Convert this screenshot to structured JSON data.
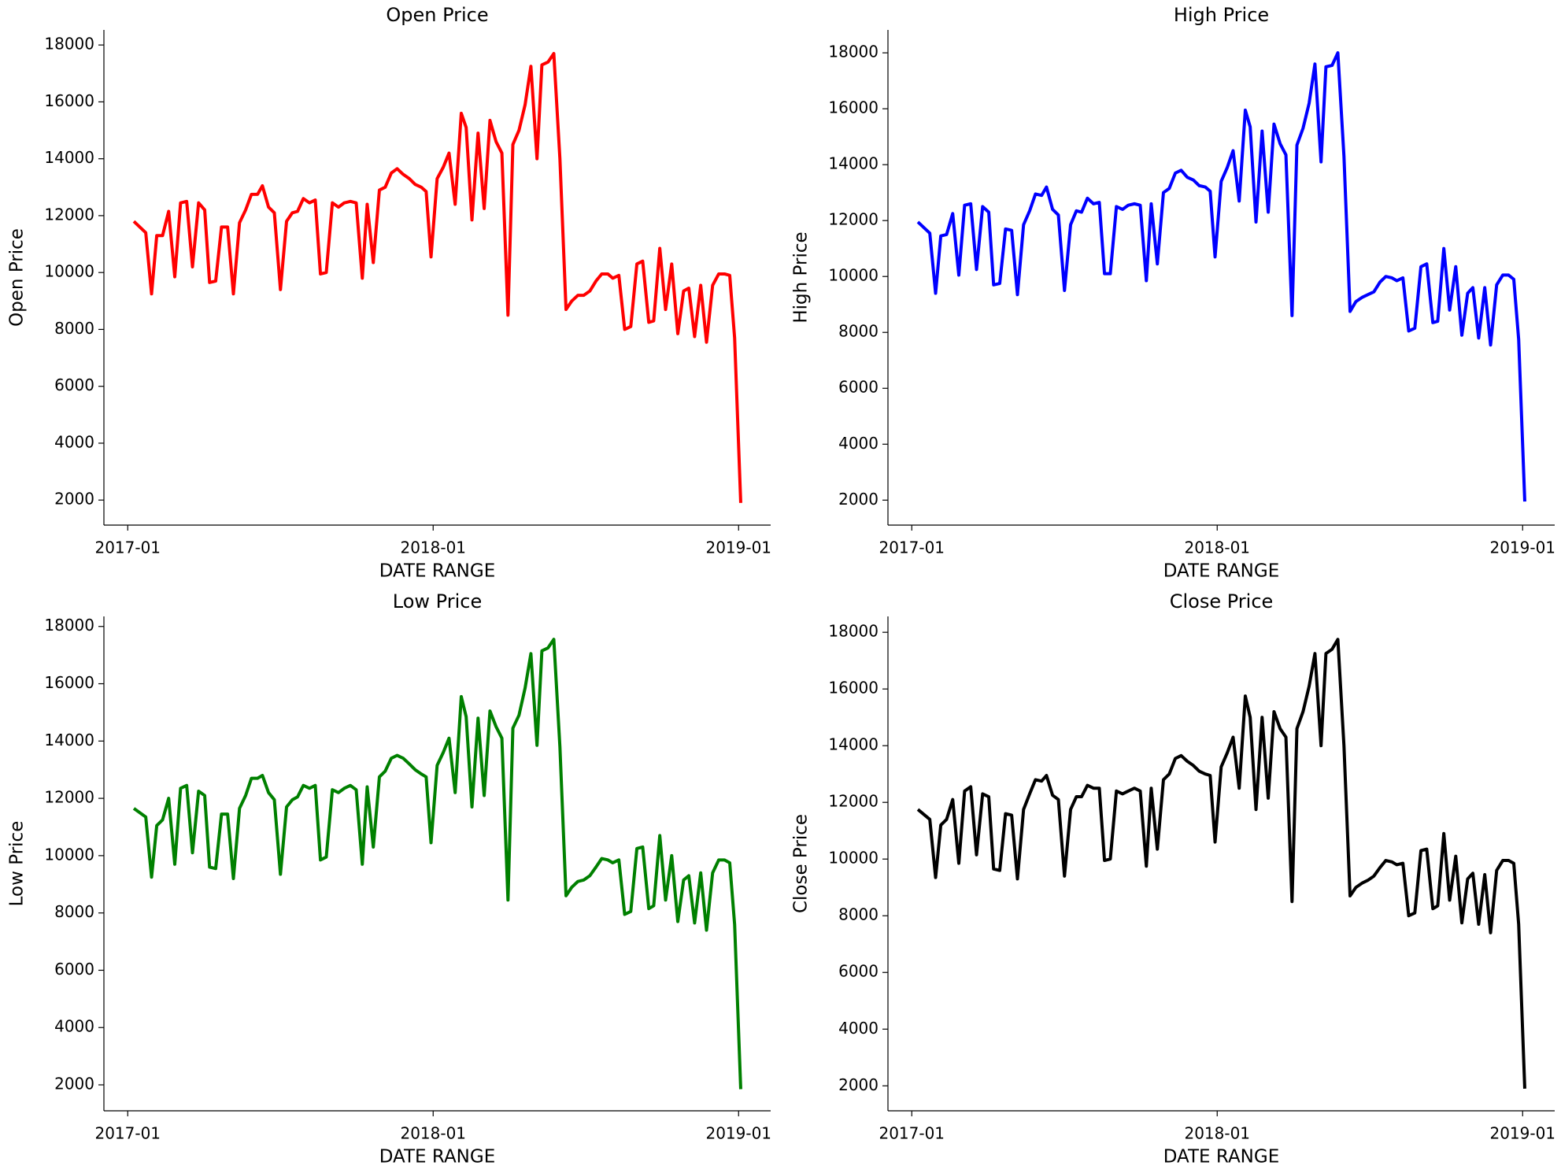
{
  "chart_data": [
    {
      "type": "line",
      "title": "Open Price",
      "xlabel": "DATE RANGE",
      "ylabel": "Open Price",
      "color": "#ff0000",
      "x": [
        2017.02,
        2017.059,
        2017.078,
        2017.095,
        2017.114,
        2017.134,
        2017.154,
        2017.173,
        2017.193,
        2017.212,
        2017.232,
        2017.252,
        2017.268,
        2017.288,
        2017.307,
        2017.327,
        2017.346,
        2017.366,
        2017.386,
        2017.405,
        2017.425,
        2017.441,
        2017.461,
        2017.48,
        2017.5,
        2017.52,
        2017.539,
        2017.556,
        2017.575,
        2017.595,
        2017.614,
        2017.631,
        2017.65,
        2017.67,
        2017.69,
        2017.709,
        2017.729,
        2017.748,
        2017.768,
        2017.784,
        2017.804,
        2017.824,
        2017.843,
        2017.863,
        2017.882,
        2017.902,
        2017.922,
        2017.941,
        2017.961,
        2017.977,
        2017.993,
        2018.013,
        2018.033,
        2018.052,
        2018.072,
        2018.092,
        2018.108,
        2018.127,
        2018.147,
        2018.167,
        2018.186,
        2018.206,
        2018.225,
        2018.245,
        2018.261,
        2018.281,
        2018.301,
        2018.32,
        2018.34,
        2018.356,
        2018.376,
        2018.395,
        2018.415,
        2018.435,
        2018.454,
        2018.474,
        2018.493,
        2018.513,
        2018.533,
        2018.552,
        2018.572,
        2018.588,
        2018.608,
        2018.627,
        2018.647,
        2018.667,
        2018.686,
        2018.706,
        2018.722,
        2018.742,
        2018.761,
        2018.781,
        2018.801,
        2018.82,
        2018.837,
        2018.856,
        2018.876,
        2018.895,
        2018.915,
        2018.935,
        2018.954,
        2018.971,
        2018.987,
        2019.007
      ],
      "values": [
        11800,
        11400,
        9250,
        11300,
        11300,
        12150,
        9850,
        12450,
        12500,
        10200,
        12450,
        12200,
        9650,
        9700,
        11600,
        11600,
        9250,
        11750,
        12200,
        12750,
        12750,
        13050,
        12300,
        12100,
        9400,
        11800,
        12100,
        12150,
        12600,
        12450,
        12550,
        9950,
        10000,
        12450,
        12300,
        12450,
        12500,
        12450,
        9800,
        12400,
        10350,
        12900,
        13000,
        13500,
        13650,
        13450,
        13300,
        13100,
        13000,
        12850,
        10550,
        13300,
        13700,
        14200,
        12400,
        15600,
        15100,
        11850,
        14900,
        12250,
        15350,
        14600,
        14200,
        8500,
        14500,
        15000,
        15900,
        17250,
        14000,
        17300,
        17400,
        17700,
        14000,
        8700,
        9000,
        9200,
        9200,
        9350,
        9700,
        9950,
        9950,
        9800,
        9900,
        8000,
        8100,
        10300,
        10400,
        8250,
        8300,
        10850,
        8700,
        10300,
        7850,
        9350,
        9450,
        7750,
        9550,
        7550,
        9550,
        9950,
        9950,
        9900,
        7700,
        1900
      ],
      "xlim": [
        2016.922,
        2019.105
      ],
      "ylim": [
        1120,
        18530
      ],
      "xticks": [
        {
          "value": 2017,
          "label": "2017-01"
        },
        {
          "value": 2018,
          "label": "2018-01"
        },
        {
          "value": 2019,
          "label": "2019-01"
        }
      ],
      "yticks": [
        2000,
        4000,
        6000,
        8000,
        10000,
        12000,
        14000,
        16000,
        18000
      ]
    },
    {
      "type": "line",
      "title": "High Price",
      "xlabel": "DATE RANGE",
      "ylabel": "High Price",
      "color": "#0000ff",
      "x": [
        2017.02,
        2017.059,
        2017.078,
        2017.095,
        2017.114,
        2017.134,
        2017.154,
        2017.173,
        2017.193,
        2017.212,
        2017.232,
        2017.252,
        2017.268,
        2017.288,
        2017.307,
        2017.327,
        2017.346,
        2017.366,
        2017.386,
        2017.405,
        2017.425,
        2017.441,
        2017.461,
        2017.48,
        2017.5,
        2017.52,
        2017.539,
        2017.556,
        2017.575,
        2017.595,
        2017.614,
        2017.631,
        2017.65,
        2017.67,
        2017.69,
        2017.709,
        2017.729,
        2017.748,
        2017.768,
        2017.784,
        2017.804,
        2017.824,
        2017.843,
        2017.863,
        2017.882,
        2017.902,
        2017.922,
        2017.941,
        2017.961,
        2017.977,
        2017.993,
        2018.013,
        2018.033,
        2018.052,
        2018.072,
        2018.092,
        2018.108,
        2018.127,
        2018.147,
        2018.167,
        2018.186,
        2018.206,
        2018.225,
        2018.245,
        2018.261,
        2018.281,
        2018.301,
        2018.32,
        2018.34,
        2018.356,
        2018.376,
        2018.395,
        2018.415,
        2018.435,
        2018.454,
        2018.474,
        2018.493,
        2018.513,
        2018.533,
        2018.552,
        2018.572,
        2018.588,
        2018.608,
        2018.627,
        2018.647,
        2018.667,
        2018.686,
        2018.706,
        2018.722,
        2018.742,
        2018.761,
        2018.781,
        2018.801,
        2018.82,
        2018.837,
        2018.856,
        2018.876,
        2018.895,
        2018.915,
        2018.935,
        2018.954,
        2018.971,
        2018.987,
        2019.007
      ],
      "values": [
        11950,
        11550,
        9400,
        11450,
        11500,
        12250,
        10050,
        12550,
        12600,
        10250,
        12500,
        12300,
        9700,
        9750,
        11700,
        11650,
        9350,
        11850,
        12350,
        12950,
        12900,
        13200,
        12400,
        12200,
        9500,
        11850,
        12350,
        12300,
        12800,
        12600,
        12650,
        10100,
        10100,
        12500,
        12400,
        12550,
        12600,
        12550,
        9850,
        12600,
        10450,
        13000,
        13150,
        13700,
        13800,
        13550,
        13450,
        13250,
        13200,
        13050,
        10700,
        13400,
        13900,
        14500,
        12700,
        15950,
        15350,
        11950,
        15200,
        12300,
        15450,
        14750,
        14350,
        8600,
        14700,
        15300,
        16200,
        17600,
        14100,
        17500,
        17550,
        18000,
        14300,
        8750,
        9100,
        9250,
        9350,
        9450,
        9800,
        10000,
        9950,
        9850,
        9950,
        8050,
        8150,
        10350,
        10450,
        8350,
        8400,
        11000,
        8800,
        10350,
        7900,
        9400,
        9600,
        7800,
        9600,
        7550,
        9700,
        10050,
        10050,
        9900,
        7750,
        1950
      ],
      "xlim": [
        2016.922,
        2019.105
      ],
      "ylim": [
        1107,
        18820
      ],
      "xticks": [
        {
          "value": 2017,
          "label": "2017-01"
        },
        {
          "value": 2018,
          "label": "2018-01"
        },
        {
          "value": 2019,
          "label": "2019-01"
        }
      ],
      "yticks": [
        2000,
        4000,
        6000,
        8000,
        10000,
        12000,
        14000,
        16000,
        18000
      ]
    },
    {
      "type": "line",
      "title": "Low Price",
      "xlabel": "DATE RANGE",
      "ylabel": "Low Price",
      "color": "#008000",
      "x": [
        2017.02,
        2017.059,
        2017.078,
        2017.095,
        2017.114,
        2017.134,
        2017.154,
        2017.173,
        2017.193,
        2017.212,
        2017.232,
        2017.252,
        2017.268,
        2017.288,
        2017.307,
        2017.327,
        2017.346,
        2017.366,
        2017.386,
        2017.405,
        2017.425,
        2017.441,
        2017.461,
        2017.48,
        2017.5,
        2017.52,
        2017.539,
        2017.556,
        2017.575,
        2017.595,
        2017.614,
        2017.631,
        2017.65,
        2017.67,
        2017.69,
        2017.709,
        2017.729,
        2017.748,
        2017.768,
        2017.784,
        2017.804,
        2017.824,
        2017.843,
        2017.863,
        2017.882,
        2017.902,
        2017.922,
        2017.941,
        2017.961,
        2017.977,
        2017.993,
        2018.013,
        2018.033,
        2018.052,
        2018.072,
        2018.092,
        2018.108,
        2018.127,
        2018.147,
        2018.167,
        2018.186,
        2018.206,
        2018.225,
        2018.245,
        2018.261,
        2018.281,
        2018.301,
        2018.32,
        2018.34,
        2018.356,
        2018.376,
        2018.395,
        2018.415,
        2018.435,
        2018.454,
        2018.474,
        2018.493,
        2018.513,
        2018.533,
        2018.552,
        2018.572,
        2018.588,
        2018.608,
        2018.627,
        2018.647,
        2018.667,
        2018.686,
        2018.706,
        2018.722,
        2018.742,
        2018.761,
        2018.781,
        2018.801,
        2018.82,
        2018.837,
        2018.856,
        2018.876,
        2018.895,
        2018.915,
        2018.935,
        2018.954,
        2018.971,
        2018.987,
        2019.007
      ],
      "values": [
        11650,
        11350,
        9250,
        11050,
        11250,
        12000,
        9700,
        12350,
        12450,
        10100,
        12250,
        12100,
        9600,
        9550,
        11450,
        11450,
        9200,
        11650,
        12100,
        12700,
        12700,
        12800,
        12200,
        11950,
        9350,
        11700,
        11950,
        12050,
        12450,
        12350,
        12450,
        9850,
        9950,
        12300,
        12200,
        12350,
        12450,
        12300,
        9700,
        12400,
        10300,
        12750,
        12950,
        13400,
        13500,
        13400,
        13200,
        13000,
        12850,
        12750,
        10450,
        13150,
        13600,
        14100,
        12200,
        15550,
        14850,
        11700,
        14800,
        12100,
        15050,
        14500,
        14100,
        8450,
        14450,
        14900,
        15850,
        17050,
        13850,
        17150,
        17250,
        17550,
        13800,
        8600,
        8900,
        9100,
        9150,
        9300,
        9600,
        9900,
        9850,
        9750,
        9850,
        7950,
        8050,
        10250,
        10300,
        8150,
        8250,
        10700,
        8450,
        10000,
        7700,
        9150,
        9300,
        7650,
        9400,
        7400,
        9400,
        9850,
        9850,
        9750,
        7600,
        1850
      ],
      "xlim": [
        2016.922,
        2019.105
      ],
      "ylim": [
        1094,
        18350
      ],
      "xticks": [
        {
          "value": 2017,
          "label": "2017-01"
        },
        {
          "value": 2018,
          "label": "2018-01"
        },
        {
          "value": 2019,
          "label": "2019-01"
        }
      ],
      "yticks": [
        2000,
        4000,
        6000,
        8000,
        10000,
        12000,
        14000,
        16000,
        18000
      ]
    },
    {
      "type": "line",
      "title": "Close Price",
      "xlabel": "DATE RANGE",
      "ylabel": "Close Price",
      "color": "#000000",
      "x": [
        2017.02,
        2017.059,
        2017.078,
        2017.095,
        2017.114,
        2017.134,
        2017.154,
        2017.173,
        2017.193,
        2017.212,
        2017.232,
        2017.252,
        2017.268,
        2017.288,
        2017.307,
        2017.327,
        2017.346,
        2017.366,
        2017.386,
        2017.405,
        2017.425,
        2017.441,
        2017.461,
        2017.48,
        2017.5,
        2017.52,
        2017.539,
        2017.556,
        2017.575,
        2017.595,
        2017.614,
        2017.631,
        2017.65,
        2017.67,
        2017.69,
        2017.709,
        2017.729,
        2017.748,
        2017.768,
        2017.784,
        2017.804,
        2017.824,
        2017.843,
        2017.863,
        2017.882,
        2017.902,
        2017.922,
        2017.941,
        2017.961,
        2017.977,
        2017.993,
        2018.013,
        2018.033,
        2018.052,
        2018.072,
        2018.092,
        2018.108,
        2018.127,
        2018.147,
        2018.167,
        2018.186,
        2018.206,
        2018.225,
        2018.245,
        2018.261,
        2018.281,
        2018.301,
        2018.32,
        2018.34,
        2018.356,
        2018.376,
        2018.395,
        2018.415,
        2018.435,
        2018.454,
        2018.474,
        2018.493,
        2018.513,
        2018.533,
        2018.552,
        2018.572,
        2018.588,
        2018.608,
        2018.627,
        2018.647,
        2018.667,
        2018.686,
        2018.706,
        2018.722,
        2018.742,
        2018.761,
        2018.781,
        2018.801,
        2018.82,
        2018.837,
        2018.856,
        2018.876,
        2018.895,
        2018.915,
        2018.935,
        2018.954,
        2018.971,
        2018.987,
        2019.007
      ],
      "values": [
        11750,
        11400,
        9350,
        11200,
        11400,
        12100,
        9850,
        12400,
        12550,
        10150,
        12300,
        12200,
        9650,
        9600,
        11600,
        11550,
        9300,
        11750,
        12300,
        12800,
        12750,
        12950,
        12250,
        12100,
        9400,
        11750,
        12200,
        12200,
        12600,
        12500,
        12500,
        9950,
        10000,
        12400,
        12300,
        12400,
        12500,
        12400,
        9750,
        12500,
        10350,
        12800,
        13000,
        13550,
        13650,
        13450,
        13300,
        13100,
        13000,
        12950,
        10600,
        13250,
        13750,
        14300,
        12500,
        15750,
        15000,
        11750,
        15000,
        12150,
        15200,
        14600,
        14300,
        8500,
        14600,
        15200,
        16100,
        17250,
        14000,
        17250,
        17400,
        17750,
        14000,
        8700,
        9000,
        9150,
        9250,
        9400,
        9700,
        9950,
        9900,
        9800,
        9850,
        8000,
        8100,
        10300,
        10350,
        8250,
        8350,
        10900,
        8550,
        10100,
        7750,
        9300,
        9500,
        7700,
        9450,
        7400,
        9600,
        9950,
        9950,
        9850,
        7700,
        1900
      ],
      "xlim": [
        2016.922,
        2019.105
      ],
      "ylim": [
        1119,
        18560
      ],
      "xticks": [
        {
          "value": 2017,
          "label": "2017-01"
        },
        {
          "value": 2018,
          "label": "2018-01"
        },
        {
          "value": 2019,
          "label": "2019-01"
        }
      ],
      "yticks": [
        2000,
        4000,
        6000,
        8000,
        10000,
        12000,
        14000,
        16000,
        18000
      ]
    }
  ]
}
